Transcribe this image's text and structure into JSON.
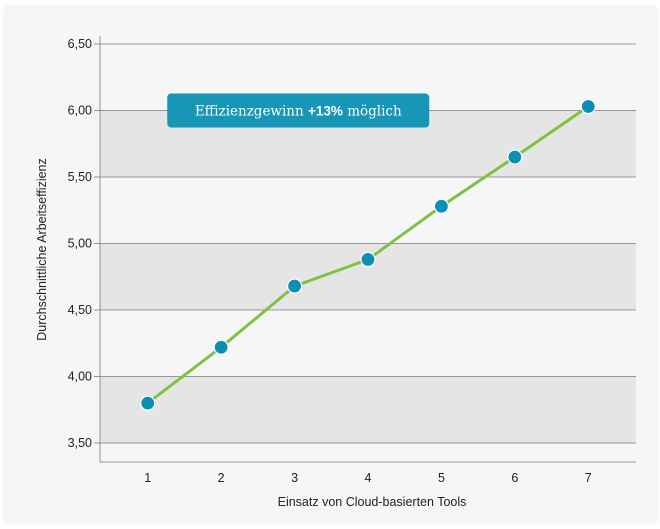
{
  "chart_data": {
    "type": "line",
    "x": [
      1,
      2,
      3,
      4,
      5,
      6,
      7
    ],
    "values": [
      3.8,
      4.22,
      4.68,
      4.88,
      5.28,
      5.65,
      6.03
    ],
    "xlabel": "Einsatz von Cloud-basierten Tools",
    "ylabel": "Durchschnittliche Arbeitseffizienz",
    "xticks": [
      "1",
      "2",
      "3",
      "4",
      "5",
      "6",
      "7"
    ],
    "yticks": [
      {
        "value": 3.5,
        "label": "3,50"
      },
      {
        "value": 4.0,
        "label": "4,00"
      },
      {
        "value": 4.5,
        "label": "4,50"
      },
      {
        "value": 5.0,
        "label": "5,00"
      },
      {
        "value": 5.5,
        "label": "5,50"
      },
      {
        "value": 6.0,
        "label": "6,00"
      },
      {
        "value": 6.5,
        "label": "6,50"
      }
    ],
    "ylim": [
      3.5,
      6.5
    ],
    "xlim": [
      0.35,
      7.65
    ],
    "grid": true,
    "colors": {
      "line": "#7dc243",
      "marker": "#0b8fb3",
      "band": "#e5e5e5",
      "gridline": "#7a7a7a",
      "callout_bg": "#1796b6"
    },
    "annotation": {
      "text_before": "Effizienzgewinn ",
      "text_bold": "+13%",
      "text_after": " möglich",
      "at_x": 3.05,
      "at_y": 6.0
    }
  }
}
